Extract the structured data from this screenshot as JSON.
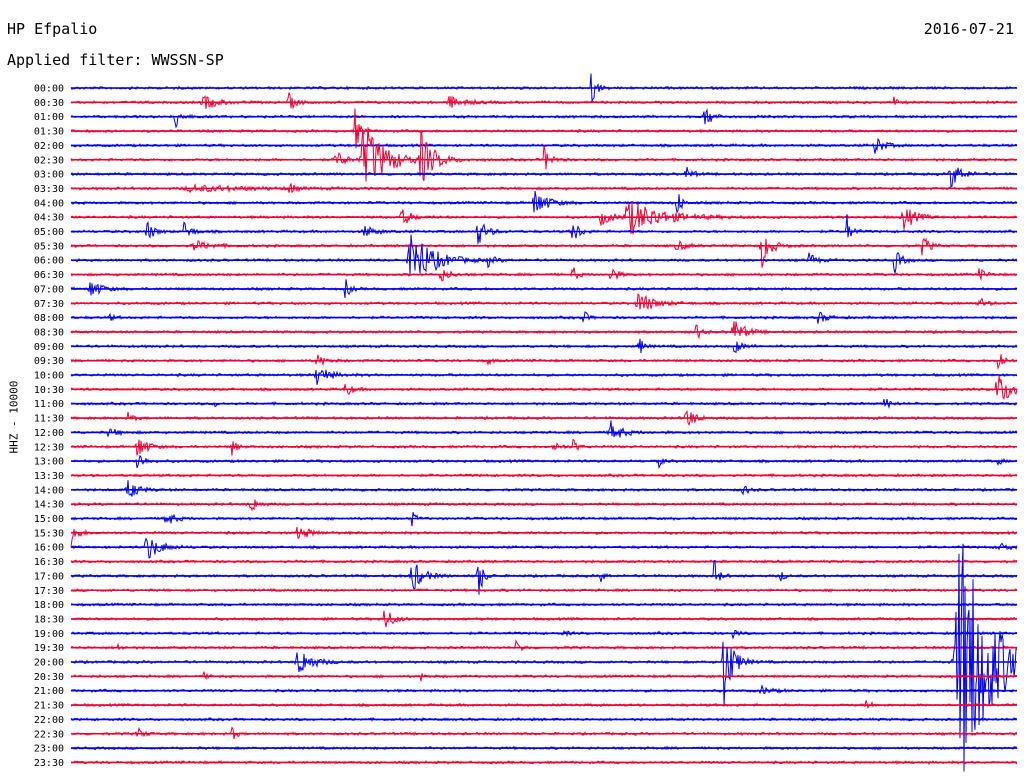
{
  "header": {
    "station": "HP Efpalio",
    "filter": "Applied filter: WWSSN-SP",
    "date": "2016-07-21"
  },
  "chart_data": {
    "type": "line",
    "title": "HP Efpalio",
    "subtitle": "Applied filter: WWSSN-SP",
    "date": "2016-07-21",
    "ylabel": "HHZ - 10000",
    "colors": {
      "even": "#0000ee",
      "odd": "#ee0033"
    },
    "rows": [
      "00:00",
      "00:30",
      "01:00",
      "01:30",
      "02:00",
      "02:30",
      "03:00",
      "03:30",
      "04:00",
      "04:30",
      "05:00",
      "05:30",
      "06:00",
      "06:30",
      "07:00",
      "07:30",
      "08:00",
      "08:30",
      "09:00",
      "09:30",
      "10:00",
      "10:30",
      "11:00",
      "11:30",
      "12:00",
      "12:30",
      "13:00",
      "13:30",
      "14:00",
      "14:30",
      "15:00",
      "15:30",
      "16:00",
      "16:30",
      "17:00",
      "17:30",
      "18:00",
      "18:30",
      "19:00",
      "19:30",
      "20:00",
      "20:30",
      "21:00",
      "21:30",
      "22:00",
      "22:30",
      "23:00",
      "23:30"
    ],
    "minutes_per_row": 30,
    "events": [
      {
        "row": 0,
        "t": 0.55,
        "a": 22,
        "w": 0.004
      },
      {
        "row": 1,
        "t": 0.14,
        "a": 8,
        "w": 0.012
      },
      {
        "row": 1,
        "t": 0.23,
        "a": 10,
        "w": 0.006
      },
      {
        "row": 1,
        "t": 0.4,
        "a": 6,
        "w": 0.014
      },
      {
        "row": 1,
        "t": 0.87,
        "a": 5,
        "w": 0.003
      },
      {
        "row": 2,
        "t": 0.11,
        "a": 12,
        "w": 0.006
      },
      {
        "row": 2,
        "t": 0.67,
        "a": 14,
        "w": 0.006
      },
      {
        "row": 3,
        "t": 0.3,
        "a": 26,
        "w": 0.004
      },
      {
        "row": 4,
        "t": 0.85,
        "a": 10,
        "w": 0.008
      },
      {
        "row": 5,
        "t": 0.28,
        "a": 10,
        "w": 0.008
      },
      {
        "row": 5,
        "t": 0.31,
        "a": 38,
        "w": 0.02
      },
      {
        "row": 5,
        "t": 0.37,
        "a": 26,
        "w": 0.012
      },
      {
        "row": 5,
        "t": 0.5,
        "a": 14,
        "w": 0.006
      },
      {
        "row": 6,
        "t": 0.65,
        "a": 8,
        "w": 0.006
      },
      {
        "row": 6,
        "t": 0.93,
        "a": 14,
        "w": 0.01
      },
      {
        "row": 7,
        "t": 0.13,
        "a": 3,
        "w": 0.06
      },
      {
        "row": 7,
        "t": 0.23,
        "a": 9,
        "w": 0.004
      },
      {
        "row": 8,
        "t": 0.49,
        "a": 14,
        "w": 0.012
      },
      {
        "row": 8,
        "t": 0.64,
        "a": 18,
        "w": 0.004
      },
      {
        "row": 9,
        "t": 0.35,
        "a": 8,
        "w": 0.01
      },
      {
        "row": 9,
        "t": 0.56,
        "a": 8,
        "w": 0.01
      },
      {
        "row": 9,
        "t": 0.59,
        "a": 18,
        "w": 0.03
      },
      {
        "row": 9,
        "t": 0.88,
        "a": 14,
        "w": 0.01
      },
      {
        "row": 10,
        "t": 0.08,
        "a": 12,
        "w": 0.006
      },
      {
        "row": 10,
        "t": 0.12,
        "a": 12,
        "w": 0.006
      },
      {
        "row": 10,
        "t": 0.31,
        "a": 6,
        "w": 0.01
      },
      {
        "row": 10,
        "t": 0.43,
        "a": 14,
        "w": 0.008
      },
      {
        "row": 10,
        "t": 0.53,
        "a": 14,
        "w": 0.006
      },
      {
        "row": 10,
        "t": 0.82,
        "a": 18,
        "w": 0.004
      },
      {
        "row": 11,
        "t": 0.13,
        "a": 5,
        "w": 0.016
      },
      {
        "row": 11,
        "t": 0.64,
        "a": 6,
        "w": 0.008
      },
      {
        "row": 11,
        "t": 0.73,
        "a": 22,
        "w": 0.008
      },
      {
        "row": 11,
        "t": 0.9,
        "a": 12,
        "w": 0.006
      },
      {
        "row": 12,
        "t": 0.36,
        "a": 30,
        "w": 0.02
      },
      {
        "row": 12,
        "t": 0.44,
        "a": 6,
        "w": 0.006
      },
      {
        "row": 12,
        "t": 0.78,
        "a": 8,
        "w": 0.006
      },
      {
        "row": 12,
        "t": 0.87,
        "a": 14,
        "w": 0.006
      },
      {
        "row": 13,
        "t": 0.39,
        "a": 8,
        "w": 0.008
      },
      {
        "row": 13,
        "t": 0.53,
        "a": 10,
        "w": 0.004
      },
      {
        "row": 13,
        "t": 0.57,
        "a": 10,
        "w": 0.006
      },
      {
        "row": 13,
        "t": 0.96,
        "a": 6,
        "w": 0.006
      },
      {
        "row": 14,
        "t": 0.02,
        "a": 10,
        "w": 0.01
      },
      {
        "row": 14,
        "t": 0.29,
        "a": 12,
        "w": 0.004
      },
      {
        "row": 15,
        "t": 0.6,
        "a": 12,
        "w": 0.014
      },
      {
        "row": 15,
        "t": 0.96,
        "a": 6,
        "w": 0.006
      },
      {
        "row": 16,
        "t": 0.04,
        "a": 4,
        "w": 0.004
      },
      {
        "row": 16,
        "t": 0.54,
        "a": 12,
        "w": 0.004
      },
      {
        "row": 16,
        "t": 0.79,
        "a": 6,
        "w": 0.008
      },
      {
        "row": 17,
        "t": 0.66,
        "a": 12,
        "w": 0.004
      },
      {
        "row": 17,
        "t": 0.7,
        "a": 14,
        "w": 0.01
      },
      {
        "row": 18,
        "t": 0.6,
        "a": 12,
        "w": 0.004
      },
      {
        "row": 18,
        "t": 0.7,
        "a": 8,
        "w": 0.008
      },
      {
        "row": 19,
        "t": 0.26,
        "a": 6,
        "w": 0.008
      },
      {
        "row": 19,
        "t": 0.44,
        "a": 4,
        "w": 0.004
      },
      {
        "row": 19,
        "t": 0.98,
        "a": 18,
        "w": 0.004
      },
      {
        "row": 20,
        "t": 0.26,
        "a": 12,
        "w": 0.01
      },
      {
        "row": 21,
        "t": 0.29,
        "a": 8,
        "w": 0.006
      },
      {
        "row": 21,
        "t": 0.98,
        "a": 16,
        "w": 0.016
      },
      {
        "row": 22,
        "t": 0.15,
        "a": 4,
        "w": 0.004
      },
      {
        "row": 22,
        "t": 0.86,
        "a": 6,
        "w": 0.006
      },
      {
        "row": 23,
        "t": 0.06,
        "a": 5,
        "w": 0.006
      },
      {
        "row": 23,
        "t": 0.65,
        "a": 12,
        "w": 0.008
      },
      {
        "row": 24,
        "t": 0.04,
        "a": 4,
        "w": 0.01
      },
      {
        "row": 24,
        "t": 0.57,
        "a": 12,
        "w": 0.01
      },
      {
        "row": 25,
        "t": 0.07,
        "a": 14,
        "w": 0.008
      },
      {
        "row": 25,
        "t": 0.17,
        "a": 10,
        "w": 0.004
      },
      {
        "row": 25,
        "t": 0.51,
        "a": 6,
        "w": 0.006
      },
      {
        "row": 25,
        "t": 0.53,
        "a": 10,
        "w": 0.004
      },
      {
        "row": 26,
        "t": 0.07,
        "a": 12,
        "w": 0.006
      },
      {
        "row": 26,
        "t": 0.62,
        "a": 8,
        "w": 0.004
      },
      {
        "row": 26,
        "t": 0.98,
        "a": 4,
        "w": 0.004
      },
      {
        "row": 28,
        "t": 0.06,
        "a": 10,
        "w": 0.01
      },
      {
        "row": 28,
        "t": 0.71,
        "a": 8,
        "w": 0.004
      },
      {
        "row": 29,
        "t": 0.19,
        "a": 10,
        "w": 0.006
      },
      {
        "row": 30,
        "t": 0.1,
        "a": 8,
        "w": 0.008
      },
      {
        "row": 30,
        "t": 0.36,
        "a": 8,
        "w": 0.004
      },
      {
        "row": 31,
        "t": 0.0,
        "a": 14,
        "w": 0.006
      },
      {
        "row": 31,
        "t": 0.24,
        "a": 8,
        "w": 0.01
      },
      {
        "row": 32,
        "t": 0.08,
        "a": 14,
        "w": 0.012
      },
      {
        "row": 32,
        "t": 0.98,
        "a": 6,
        "w": 0.008
      },
      {
        "row": 34,
        "t": 0.36,
        "a": 18,
        "w": 0.01
      },
      {
        "row": 34,
        "t": 0.43,
        "a": 30,
        "w": 0.004
      },
      {
        "row": 34,
        "t": 0.56,
        "a": 6,
        "w": 0.004
      },
      {
        "row": 34,
        "t": 0.68,
        "a": 18,
        "w": 0.004
      },
      {
        "row": 34,
        "t": 0.75,
        "a": 6,
        "w": 0.004
      },
      {
        "row": 37,
        "t": 0.33,
        "a": 14,
        "w": 0.008
      },
      {
        "row": 38,
        "t": 0.52,
        "a": 4,
        "w": 0.004
      },
      {
        "row": 38,
        "t": 0.7,
        "a": 6,
        "w": 0.004
      },
      {
        "row": 39,
        "t": 0.05,
        "a": 4,
        "w": 0.004
      },
      {
        "row": 39,
        "t": 0.47,
        "a": 6,
        "w": 0.006
      },
      {
        "row": 40,
        "t": 0.24,
        "a": 16,
        "w": 0.012
      },
      {
        "row": 40,
        "t": 0.69,
        "a": 50,
        "w": 0.008
      },
      {
        "row": 41,
        "t": 0.14,
        "a": 4,
        "w": 0.004
      },
      {
        "row": 41,
        "t": 0.37,
        "a": 4,
        "w": 0.004
      },
      {
        "row": 42,
        "t": 0.73,
        "a": 4,
        "w": 0.01
      },
      {
        "row": 43,
        "t": 0.84,
        "a": 8,
        "w": 0.004
      },
      {
        "row": 45,
        "t": 0.07,
        "a": 6,
        "w": 0.006
      },
      {
        "row": 45,
        "t": 0.17,
        "a": 8,
        "w": 0.004
      },
      {
        "row": 40,
        "t": 0.94,
        "a": 140,
        "w": 0.03
      }
    ],
    "grid": false,
    "legend": "none"
  }
}
